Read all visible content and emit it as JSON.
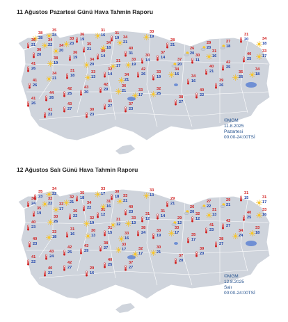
{
  "panels": [
    {
      "title": "11 Ağustos Pazartesi Günü Hava Tahmin Raporu",
      "credit": {
        "org": "©MGM",
        "date": "11.8.2025",
        "day": "Pazartesi",
        "time": "00:00-24:00TSİ"
      },
      "stations": [
        {
          "icon": "sun-icon",
          "hi": "38",
          "lo": "28"
        },
        {
          "icon": "sun-icon",
          "hi": "35",
          "lo": "24"
        },
        {
          "icon": "thermometer-icon",
          "hi": "36",
          "lo": "21"
        },
        {
          "icon": "sun-icon",
          "hi": "34",
          "lo": "22"
        },
        {
          "icon": "thermometer-icon",
          "hi": "36",
          "lo": "20"
        },
        {
          "icon": "sun-icon",
          "hi": "34",
          "lo": "20"
        },
        {
          "icon": "sun-icon",
          "hi": "33",
          "lo": "23"
        },
        {
          "icon": "thermometer-icon",
          "hi": "36",
          "lo": "19"
        },
        {
          "icon": "sun-icon",
          "hi": "31",
          "lo": "16"
        },
        {
          "icon": "thermometer-icon",
          "hi": "35",
          "lo": "21"
        },
        {
          "icon": "sun-icon",
          "hi": "34",
          "lo": "18"
        },
        {
          "icon": "sun-icon",
          "hi": "34",
          "lo": "21"
        },
        {
          "icon": "thermometer-icon",
          "hi": "31",
          "lo": "19"
        },
        {
          "icon": "thermometer-icon",
          "hi": "40",
          "lo": "31"
        },
        {
          "icon": "sun-icon",
          "hi": "33",
          "lo": "19"
        },
        {
          "icon": "thermometer-icon",
          "hi": "28",
          "lo": "21"
        },
        {
          "icon": "partly-cloudy-icon",
          "hi": "26",
          "lo": "20"
        },
        {
          "icon": "partly-cloudy-icon",
          "hi": "29",
          "lo": "20"
        },
        {
          "icon": "partly-cloudy-icon",
          "hi": "27",
          "lo": "18"
        },
        {
          "icon": "thermometer-icon",
          "hi": "31",
          "lo": "20"
        },
        {
          "icon": "sun-icon",
          "hi": "34",
          "lo": "18"
        },
        {
          "icon": "thermometer-icon",
          "hi": "41",
          "lo": "26"
        },
        {
          "icon": "sun-icon",
          "hi": "38",
          "lo": "19"
        },
        {
          "icon": "thermometer-icon",
          "hi": "36",
          "lo": "19"
        },
        {
          "icon": "sun-icon",
          "hi": "34",
          "lo": "20"
        },
        {
          "icon": "thermometer-icon",
          "hi": "30",
          "lo": "14"
        },
        {
          "icon": "sun-icon",
          "hi": "31",
          "lo": "17"
        },
        {
          "icon": "sun-icon",
          "hi": "33",
          "lo": "19"
        },
        {
          "icon": "thermometer-icon",
          "hi": "30",
          "lo": "14"
        },
        {
          "icon": "thermometer-icon",
          "hi": "37",
          "lo": "14"
        },
        {
          "icon": "partly-cloudy-icon",
          "hi": "37",
          "lo": "20"
        },
        {
          "icon": "thermometer-icon",
          "hi": "30",
          "lo": "11"
        },
        {
          "icon": "sun-icon",
          "hi": "31",
          "lo": "16"
        },
        {
          "icon": "thermometer-icon",
          "hi": "41",
          "lo": "26"
        },
        {
          "icon": "sun-icon",
          "hi": "34",
          "lo": "21"
        },
        {
          "icon": "thermometer-icon",
          "hi": "31",
          "lo": "18"
        },
        {
          "icon": "sun-icon",
          "hi": "33",
          "lo": "13"
        },
        {
          "icon": "thermometer-icon",
          "hi": "32",
          "lo": "14"
        },
        {
          "icon": "sun-icon",
          "hi": "34",
          "lo": "21"
        },
        {
          "icon": "thermometer-icon",
          "hi": "42",
          "lo": "26"
        },
        {
          "icon": "thermometer-icon",
          "hi": "33",
          "lo": "19"
        },
        {
          "icon": "sun-icon",
          "hi": "34",
          "lo": "16"
        },
        {
          "icon": "thermometer-icon",
          "hi": "34",
          "lo": "16"
        },
        {
          "icon": "thermometer-icon",
          "hi": "40",
          "lo": "21"
        },
        {
          "icon": "thermometer-icon",
          "hi": "42",
          "lo": "25"
        },
        {
          "icon": "thermometer-icon",
          "hi": "40",
          "lo": "25"
        },
        {
          "icon": "sun-icon",
          "hi": "33",
          "lo": "17"
        },
        {
          "icon": "thermometer-icon",
          "hi": "41",
          "lo": "26"
        },
        {
          "icon": "thermometer-icon",
          "hi": "44",
          "lo": "26"
        },
        {
          "icon": "thermometer-icon",
          "hi": "42",
          "lo": "25"
        },
        {
          "icon": "thermometer-icon",
          "hi": "43",
          "lo": "30"
        },
        {
          "icon": "thermometer-icon",
          "hi": "42",
          "lo": "29"
        },
        {
          "icon": "sun-icon",
          "hi": "36",
          "lo": "21"
        },
        {
          "icon": "sun-icon",
          "hi": "33",
          "lo": "17"
        },
        {
          "icon": "sun-icon",
          "hi": "32",
          "lo": "25"
        },
        {
          "icon": "thermometer-icon",
          "hi": "38",
          "lo": "27"
        },
        {
          "icon": "thermometer-icon",
          "hi": "40",
          "lo": "22"
        },
        {
          "icon": "thermometer-icon",
          "hi": "39",
          "lo": "26"
        },
        {
          "icon": "sun-icon",
          "hi": "35",
          "lo": "26"
        },
        {
          "icon": "sun-icon",
          "hi": "34",
          "lo": "18"
        },
        {
          "icon": "thermometer-icon",
          "hi": "41",
          "lo": "23"
        },
        {
          "icon": "thermometer-icon",
          "hi": "43",
          "lo": "27"
        },
        {
          "icon": "thermometer-icon",
          "hi": "30",
          "lo": "23"
        },
        {
          "icon": "thermometer-icon",
          "hi": "41",
          "lo": "27"
        },
        {
          "icon": "thermometer-icon",
          "hi": "37",
          "lo": "23"
        }
      ]
    },
    {
      "title": "12 Ağustos Salı Günü Hava Tahmin Raporu",
      "credit": {
        "org": "©MGM",
        "date": "12.8.2025",
        "day": "Salı",
        "time": "00:00-24:00TSİ"
      },
      "stations": [
        {
          "icon": "thermometer-icon",
          "hi": "35",
          "lo": "23"
        },
        {
          "icon": "sun-icon",
          "hi": "34",
          "lo": "22"
        },
        {
          "icon": "thermometer-icon",
          "hi": "36",
          "lo": "24"
        },
        {
          "icon": "sun-icon",
          "hi": "32",
          "lo": "22"
        },
        {
          "icon": "thermometer-icon",
          "hi": "35",
          "lo": "19"
        },
        {
          "icon": "sun-icon",
          "hi": "33",
          "lo": "17"
        },
        {
          "icon": "sun-icon",
          "hi": "32",
          "lo": "21"
        },
        {
          "icon": "thermometer-icon",
          "hi": "35",
          "lo": "18"
        },
        {
          "icon": "sun-icon",
          "hi": "33",
          "lo": "17"
        },
        {
          "icon": "thermometer-icon",
          "hi": "34",
          "lo": "22"
        },
        {
          "icon": "sun-icon",
          "hi": "31",
          "lo": "16"
        },
        {
          "icon": "sun-icon",
          "hi": "33",
          "lo": "21"
        },
        {
          "icon": "thermometer-icon",
          "hi": "30",
          "lo": "18"
        },
        {
          "icon": "thermometer-icon",
          "hi": "40",
          "lo": "23"
        },
        {
          "icon": "sun-icon",
          "hi": "33",
          "lo": "13"
        },
        {
          "icon": "thermometer-icon",
          "hi": "29",
          "lo": "21"
        },
        {
          "icon": "partly-cloudy-icon",
          "hi": "26",
          "lo": "20"
        },
        {
          "icon": "partly-cloudy-icon",
          "hi": "27",
          "lo": "22"
        },
        {
          "icon": "partly-cloudy-icon",
          "hi": "29",
          "lo": "21"
        },
        {
          "icon": "thermometer-icon",
          "hi": "31",
          "lo": "15"
        },
        {
          "icon": "sun-icon",
          "hi": "31",
          "lo": "17"
        },
        {
          "icon": "thermometer-icon",
          "hi": "40",
          "lo": "23"
        },
        {
          "icon": "sun-icon",
          "hi": "33",
          "lo": "26"
        },
        {
          "icon": "thermometer-icon",
          "hi": "36",
          "lo": "22"
        },
        {
          "icon": "sun-icon",
          "hi": "32",
          "lo": "19"
        },
        {
          "icon": "thermometer-icon",
          "hi": "31",
          "lo": "12"
        },
        {
          "icon": "sun-icon",
          "hi": "31",
          "lo": "12"
        },
        {
          "icon": "sun-icon",
          "hi": "33",
          "lo": "13"
        },
        {
          "icon": "thermometer-icon",
          "hi": "31",
          "lo": "12"
        },
        {
          "icon": "thermometer-icon",
          "hi": "31",
          "lo": "14"
        },
        {
          "icon": "partly-cloudy-icon",
          "hi": "29",
          "lo": "12"
        },
        {
          "icon": "thermometer-icon",
          "hi": "32",
          "lo": "12"
        },
        {
          "icon": "sun-icon",
          "hi": "31",
          "lo": "13"
        },
        {
          "icon": "thermometer-icon",
          "hi": "40",
          "lo": "23"
        },
        {
          "icon": "sun-icon",
          "hi": "33",
          "lo": "18"
        },
        {
          "icon": "thermometer-icon",
          "hi": "31",
          "lo": "16"
        },
        {
          "icon": "sun-icon",
          "hi": "30",
          "lo": "13"
        },
        {
          "icon": "thermometer-icon",
          "hi": "31",
          "lo": "15"
        },
        {
          "icon": "sun-icon",
          "hi": "33",
          "lo": "16"
        },
        {
          "icon": "thermometer-icon",
          "hi": "38",
          "lo": "24"
        },
        {
          "icon": "thermometer-icon",
          "hi": "33",
          "lo": "19"
        },
        {
          "icon": "sun-icon",
          "hi": "33",
          "lo": "17"
        },
        {
          "icon": "thermometer-icon",
          "hi": "35",
          "lo": "17"
        },
        {
          "icon": "thermometer-icon",
          "hi": "41",
          "lo": "23"
        },
        {
          "icon": "thermometer-icon",
          "hi": "42",
          "lo": "27"
        },
        {
          "icon": "thermometer-icon",
          "hi": "40",
          "lo": "25"
        },
        {
          "icon": "sun-icon",
          "hi": "33",
          "lo": "16"
        },
        {
          "icon": "thermometer-icon",
          "hi": "41",
          "lo": "22"
        },
        {
          "icon": "thermometer-icon",
          "hi": "43",
          "lo": "24"
        },
        {
          "icon": "thermometer-icon",
          "hi": "42",
          "lo": "25"
        },
        {
          "icon": "thermometer-icon",
          "hi": "43",
          "lo": "29"
        },
        {
          "icon": "thermometer-icon",
          "hi": "38",
          "lo": "27"
        },
        {
          "icon": "sun-icon",
          "hi": "33",
          "lo": "17"
        },
        {
          "icon": "sun-icon",
          "hi": "32",
          "lo": "17"
        },
        {
          "icon": "sun-icon",
          "hi": "30",
          "lo": "21"
        },
        {
          "icon": "thermometer-icon",
          "hi": "37",
          "lo": "20"
        },
        {
          "icon": "thermometer-icon",
          "hi": "39",
          "lo": "20"
        },
        {
          "icon": "thermometer-icon",
          "hi": "38",
          "lo": "27"
        },
        {
          "icon": "sun-icon",
          "hi": "34",
          "lo": "24"
        },
        {
          "icon": "sun-icon",
          "hi": "33",
          "lo": "18"
        },
        {
          "icon": "thermometer-icon",
          "hi": "40",
          "lo": "23"
        },
        {
          "icon": "thermometer-icon",
          "hi": "42",
          "lo": "27"
        },
        {
          "icon": "thermometer-icon",
          "hi": "29",
          "lo": "16"
        },
        {
          "icon": "thermometer-icon",
          "hi": "40",
          "lo": "25"
        },
        {
          "icon": "thermometer-icon",
          "hi": "37",
          "lo": "27"
        }
      ]
    }
  ],
  "colors": {
    "land": "#cfd4dc",
    "border": "#ffffff",
    "lake": "#6f8fd4",
    "sun": "#f2b618",
    "sun_core": "#f7c62b",
    "temp_hi": "#d11a1a",
    "temp_lo": "#1a3fa8",
    "thermometer": "#d11a1a",
    "cloud": "#c6ccd6",
    "credit": "#1f4e8c"
  }
}
